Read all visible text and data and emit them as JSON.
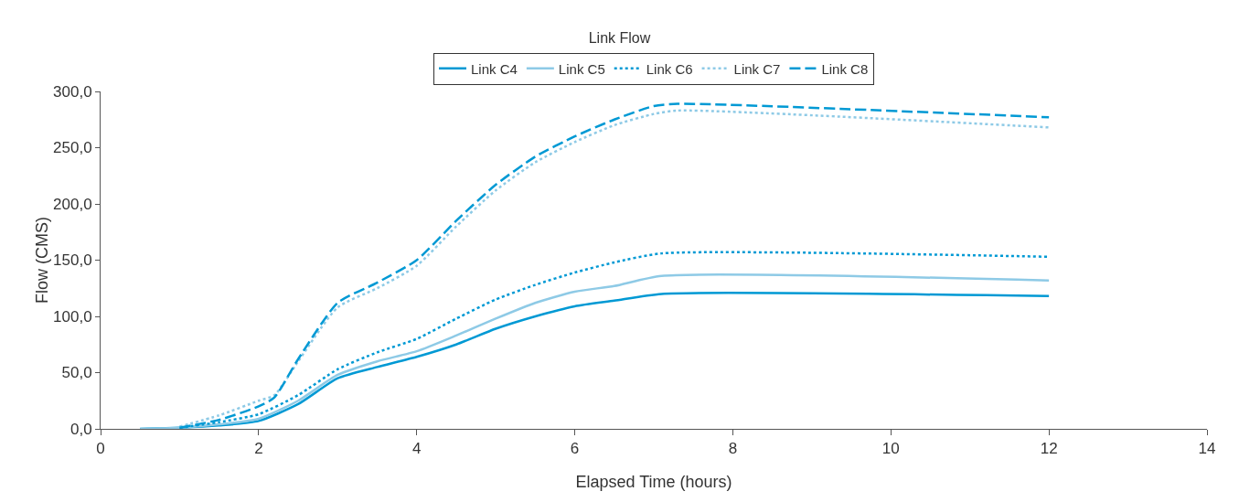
{
  "chart_data": {
    "type": "line",
    "title": "Link Flow",
    "xlabel": "Elapsed Time (hours)",
    "ylabel": "Flow (CMS)",
    "xlim": [
      0,
      14
    ],
    "xticks": [
      0,
      2,
      4,
      6,
      8,
      10,
      12,
      14
    ],
    "ylim": [
      0,
      300
    ],
    "yticks": [
      {
        "value": 0,
        "label": "0,0"
      },
      {
        "value": 50,
        "label": "50,0"
      },
      {
        "value": 100,
        "label": "100,0"
      },
      {
        "value": 150,
        "label": "150,0"
      },
      {
        "value": 200,
        "label": "200,0"
      },
      {
        "value": 250,
        "label": "250,0"
      },
      {
        "value": 300,
        "label": "300,0"
      }
    ],
    "grid": false,
    "legend": "top",
    "marker": "none",
    "series": [
      {
        "name": "Link C4",
        "color": "#0099d4",
        "line_style": "solid",
        "x": [
          0.5,
          1,
          1.5,
          2,
          2.5,
          3,
          3.5,
          4,
          4.5,
          5,
          5.5,
          6,
          6.5,
          7.1,
          12
        ],
        "values": [
          0,
          1,
          3,
          7,
          22,
          45,
          55,
          64,
          75,
          89,
          100,
          109,
          114,
          120,
          118
        ]
      },
      {
        "name": "Link C5",
        "color": "#8ecae6",
        "line_style": "solid",
        "x": [
          0.5,
          1,
          1.5,
          2,
          2.5,
          3,
          3.5,
          4,
          4.5,
          5,
          5.5,
          6,
          6.5,
          7.1,
          12
        ],
        "values": [
          0,
          1,
          4,
          9,
          25,
          48,
          60,
          69,
          83,
          98,
          112,
          122,
          127,
          136,
          132
        ]
      },
      {
        "name": "Link C6",
        "color": "#0099d4",
        "line_style": "dotted",
        "x": [
          1,
          1.5,
          2,
          2.5,
          3,
          3.5,
          4,
          4.5,
          5,
          5.5,
          6,
          6.5,
          7.1,
          12
        ],
        "values": [
          1,
          6,
          13,
          30,
          53,
          68,
          80,
          98,
          115,
          128,
          139,
          148,
          156,
          153
        ]
      },
      {
        "name": "Link C7",
        "color": "#8ecae6",
        "line_style": "dotted",
        "x": [
          1,
          1.5,
          2,
          2.2,
          2.5,
          3,
          3.5,
          4,
          4.5,
          5,
          5.5,
          6,
          6.5,
          7,
          7.3,
          12
        ],
        "values": [
          2,
          12,
          25,
          30,
          60,
          108,
          125,
          145,
          180,
          212,
          237,
          255,
          270,
          280,
          283,
          268
        ]
      },
      {
        "name": "Link C8",
        "color": "#0099d4",
        "line_style": "dashed",
        "x": [
          1,
          1.5,
          2,
          2.2,
          2.5,
          3,
          3.5,
          4,
          4.5,
          5,
          5.5,
          6,
          6.5,
          7,
          7.3,
          12
        ],
        "values": [
          1,
          8,
          20,
          28,
          62,
          112,
          130,
          150,
          185,
          217,
          242,
          260,
          275,
          287,
          289,
          277
        ]
      }
    ]
  }
}
